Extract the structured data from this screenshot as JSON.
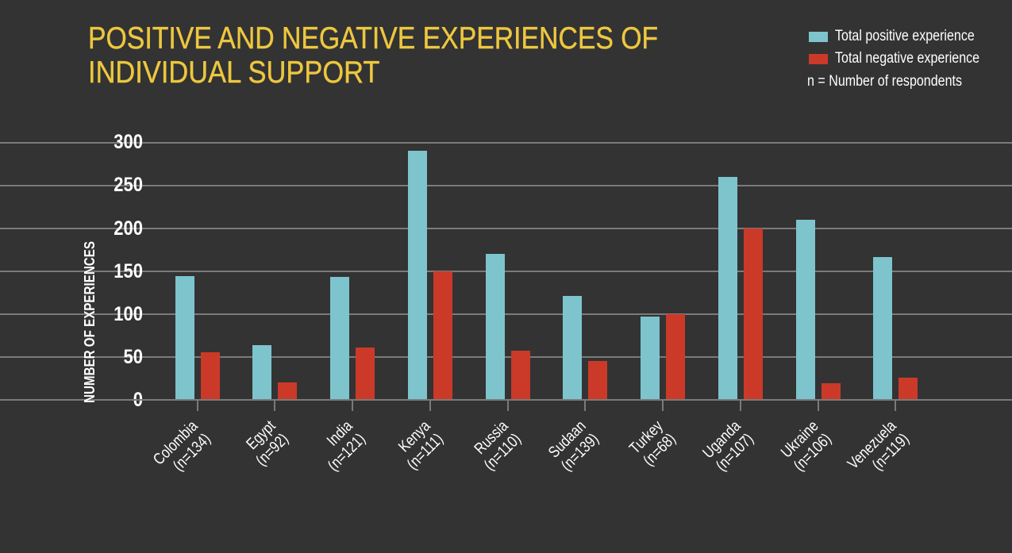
{
  "title": {
    "line1": "POSITIVE AND NEGATIVE EXPERIENCES OF",
    "line2": "INDIVIDUAL SUPPORT"
  },
  "legend": {
    "items": [
      {
        "label": "Total positive experience",
        "color": "#7dc4cd"
      },
      {
        "label": "Total negative experience",
        "color": "#cb3a28"
      }
    ],
    "note": "n = Number of respondents"
  },
  "axes": {
    "y_title": "NUMBER OF EXPERIENCES",
    "y_ticks": [
      "0",
      "50",
      "100",
      "150",
      "200",
      "250",
      "300"
    ]
  },
  "colors": {
    "background": "#333333",
    "title": "#edc73e",
    "grid": "#7a7a7a",
    "tick": "#7a7a7a",
    "text": "#ffffff",
    "positive": "#7dc4cd",
    "negative": "#cb3a28"
  },
  "chart_data": {
    "type": "bar",
    "title": "POSITIVE AND NEGATIVE EXPERIENCES OF INDIVIDUAL SUPPORT",
    "categories": [
      "Colombia",
      "Egypt",
      "India",
      "Kenya",
      "Russia",
      "Sudaan",
      "Turkey",
      "Uganda",
      "Ukraine",
      "Venezuela"
    ],
    "category_notes": [
      "(n=134)",
      "(n=92)",
      "(n=121)",
      "(n=111)",
      "(n=110)",
      "(n=139)",
      "(n=68)",
      "(n=107)",
      "(n=106)",
      "(n=119)"
    ],
    "series": [
      {
        "name": "Total positive experience",
        "values": [
          145,
          64,
          144,
          291,
          170,
          121,
          97,
          260,
          210,
          167
        ]
      },
      {
        "name": "Total negative experience",
        "values": [
          56,
          21,
          61,
          150,
          58,
          46,
          100,
          200,
          20,
          26
        ]
      }
    ],
    "xlabel": "",
    "ylabel": "NUMBER OF EXPERIENCES",
    "ylim": [
      0,
      300
    ],
    "y_tick_step": 50,
    "grid": true,
    "legend_position": "top-right"
  }
}
